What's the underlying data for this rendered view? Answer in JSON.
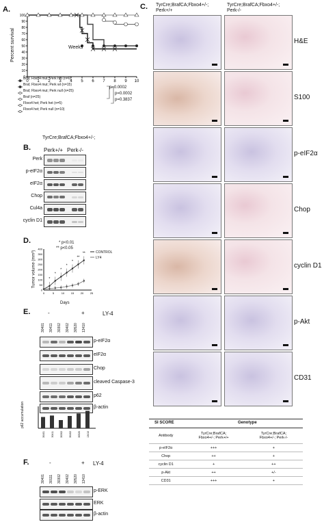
{
  "panelA": {
    "label": "A.",
    "ylabel": "Percent survival",
    "xlabel": "Weeks",
    "yticks": [
      "0",
      "10",
      "20",
      "30",
      "40",
      "50",
      "60",
      "70",
      "80",
      "90",
      "100"
    ],
    "xticks": [
      "0",
      "1",
      "2",
      "3",
      "4",
      "5",
      "6",
      "7",
      "8",
      "9",
      "10"
    ],
    "legend": [
      "Braf, Fbxo4 mut; Perk het (n=6)",
      "Braf, Fbxo4 mut; Perk wt (n=15)",
      "Braf, Fbxo4 mut; Perk null (n=25)",
      "Braf (n=25)",
      "Fbxo4 het; Perk het (n=5)",
      "Fbxo4 het; Perk null (n=10)"
    ],
    "pvalues": [
      "p=0.0002",
      "p=0.0002",
      "p=0.3837"
    ]
  },
  "panelB": {
    "label": "B.",
    "header": "TyrCre;BrafCA;Fbxo4+/-;",
    "cols": [
      "Perk+/+",
      "Perk-/-"
    ],
    "rows": [
      "Perk",
      "p-eIF2α",
      "eIF2α",
      "Chop",
      "Cul4a",
      "cyclin D1"
    ]
  },
  "panelD": {
    "label": "D.",
    "annotations": [
      "* p<0.01",
      "** p<0.05"
    ],
    "legend": [
      "CONTROL",
      "LY4"
    ],
    "ylabel": "Tumor volume (mm³)",
    "xlabel": "Days",
    "yticks": [
      "0",
      "50",
      "100",
      "150",
      "200",
      "250",
      "300",
      "350",
      "400"
    ],
    "xticks": [
      "0",
      "5",
      "10",
      "15",
      "20",
      "25"
    ],
    "stars": [
      "*",
      "*",
      "*",
      "*",
      "*",
      "**",
      "**"
    ]
  },
  "panelE": {
    "label": "E.",
    "groups": [
      "-",
      "+"
    ],
    "treatment": "LY-4",
    "lanes": [
      "30401",
      "30411",
      "30302",
      "30402",
      "30520",
      "13410"
    ],
    "rows": [
      "p-eIF2α",
      "eIF2α",
      "Chop",
      "cleaved Caspase-3",
      "p62",
      "β-actin"
    ],
    "barchart_ylabel": "p62 accumulation",
    "barchart_values": [
      0.55,
      0.62,
      0.4,
      0.6,
      0.72,
      0.85
    ]
  },
  "panelF": {
    "label": "F.",
    "groups": [
      "-",
      "+"
    ],
    "treatment": "LY-4",
    "lanes": [
      "30401",
      "30111",
      "30302",
      "30402",
      "30520",
      "13410"
    ],
    "rows": [
      "p-ERK",
      "ERK",
      "β-actin"
    ]
  },
  "panelC": {
    "label": "C.",
    "colheaders": [
      "TyrCre;BrafCA;Fbxo4+/-;\nPerk+/+",
      "TyrCre;BrafCA;Fbxo4+/-;\nPerk-/-"
    ],
    "rows": [
      "H&E",
      "S100",
      "p-eIF2α",
      "Chop",
      "cyclin D1",
      "p-Akt",
      "CD31"
    ]
  },
  "table": {
    "title": "SI SCORE",
    "genotype": "Genotype",
    "antibody": "Antibody",
    "col1": "TyrCre;BrafCA;\nFbxo4+/-; Perk+/+",
    "col2": "TyrCre;BrafCA;\nFbxo4+/-; Perk-/-",
    "rows": [
      {
        "name": "p-eIF2α",
        "a": "+++",
        "b": "+"
      },
      {
        "name": "Chop",
        "a": "++",
        "b": "+"
      },
      {
        "name": "cyclin D1",
        "a": "+",
        "b": "++"
      },
      {
        "name": "p-Akt",
        "a": "++",
        "b": "+/-"
      },
      {
        "name": "CD31",
        "a": "+++",
        "b": "+"
      }
    ]
  }
}
